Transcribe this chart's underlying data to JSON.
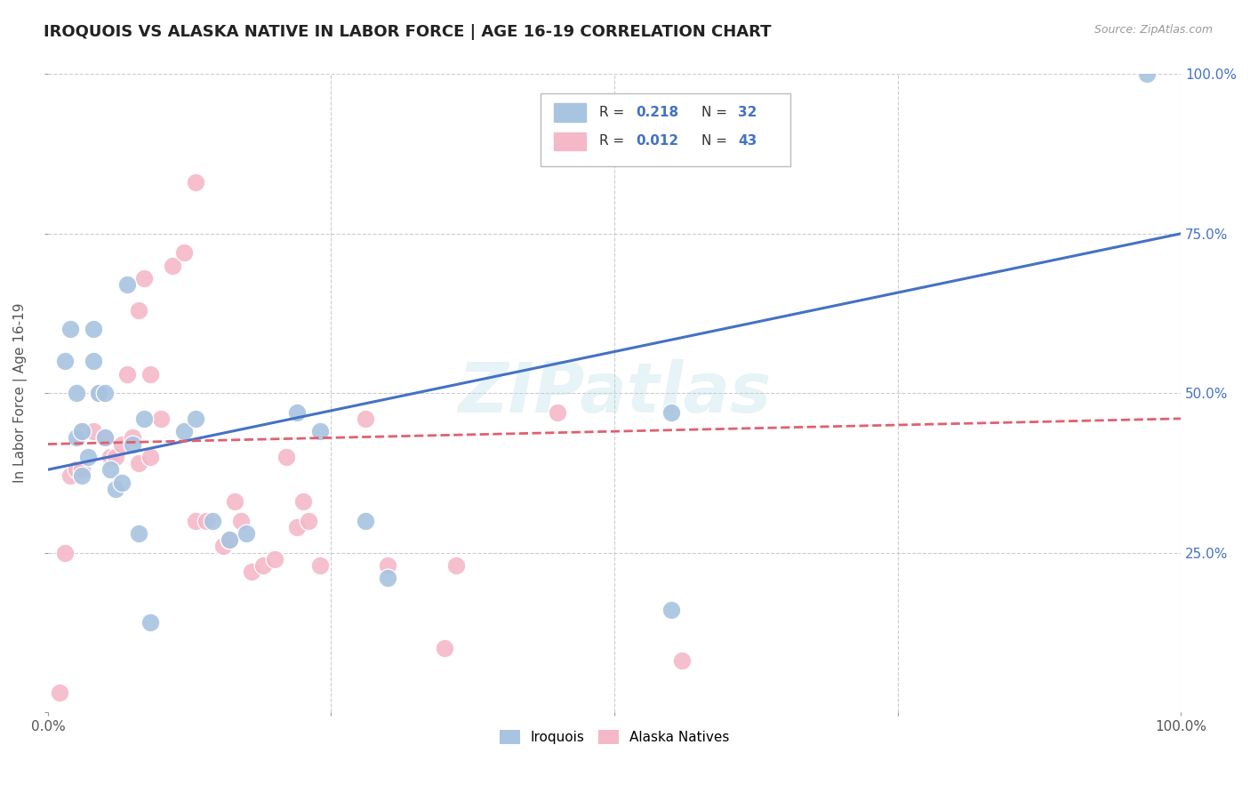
{
  "title": "IROQUOIS VS ALASKA NATIVE IN LABOR FORCE | AGE 16-19 CORRELATION CHART",
  "source": "Source: ZipAtlas.com",
  "ylabel": "In Labor Force | Age 16-19",
  "xlim": [
    0,
    1
  ],
  "ylim": [
    0,
    1
  ],
  "watermark": "ZIPatlas",
  "iroquois_color": "#a8c4e0",
  "alaska_color": "#f4b8c8",
  "line1_color": "#4472c4",
  "line2_color": "#e06070",
  "grid_color": "#cccccc",
  "bg_color": "#ffffff",
  "iroquois_x": [
    0.015,
    0.02,
    0.025,
    0.025,
    0.03,
    0.03,
    0.035,
    0.04,
    0.04,
    0.045,
    0.05,
    0.05,
    0.055,
    0.06,
    0.065,
    0.07,
    0.075,
    0.08,
    0.085,
    0.09,
    0.12,
    0.13,
    0.145,
    0.16,
    0.175,
    0.22,
    0.24,
    0.28,
    0.3,
    0.55,
    0.55,
    0.97
  ],
  "iroquois_y": [
    0.55,
    0.6,
    0.5,
    0.43,
    0.37,
    0.44,
    0.4,
    0.55,
    0.6,
    0.5,
    0.5,
    0.43,
    0.38,
    0.35,
    0.36,
    0.67,
    0.42,
    0.28,
    0.46,
    0.14,
    0.44,
    0.46,
    0.3,
    0.27,
    0.28,
    0.47,
    0.44,
    0.3,
    0.21,
    0.16,
    0.47,
    1.0
  ],
  "alaska_x": [
    0.01,
    0.015,
    0.02,
    0.025,
    0.03,
    0.03,
    0.04,
    0.045,
    0.05,
    0.055,
    0.06,
    0.065,
    0.07,
    0.075,
    0.08,
    0.08,
    0.085,
    0.09,
    0.09,
    0.1,
    0.11,
    0.12,
    0.13,
    0.13,
    0.14,
    0.155,
    0.16,
    0.165,
    0.17,
    0.18,
    0.19,
    0.2,
    0.21,
    0.22,
    0.225,
    0.23,
    0.24,
    0.28,
    0.3,
    0.35,
    0.36,
    0.45,
    0.56
  ],
  "alaska_y": [
    0.03,
    0.25,
    0.37,
    0.38,
    0.38,
    0.44,
    0.44,
    0.5,
    0.43,
    0.4,
    0.4,
    0.42,
    0.53,
    0.43,
    0.39,
    0.63,
    0.68,
    0.4,
    0.53,
    0.46,
    0.7,
    0.72,
    0.3,
    0.83,
    0.3,
    0.26,
    0.27,
    0.33,
    0.3,
    0.22,
    0.23,
    0.24,
    0.4,
    0.29,
    0.33,
    0.3,
    0.23,
    0.46,
    0.23,
    0.1,
    0.23,
    0.47,
    0.08
  ],
  "iroquois_line_x": [
    0.0,
    1.0
  ],
  "iroquois_line_y": [
    0.38,
    0.75
  ],
  "alaska_line_x": [
    0.0,
    1.0
  ],
  "alaska_line_y": [
    0.42,
    0.46
  ]
}
